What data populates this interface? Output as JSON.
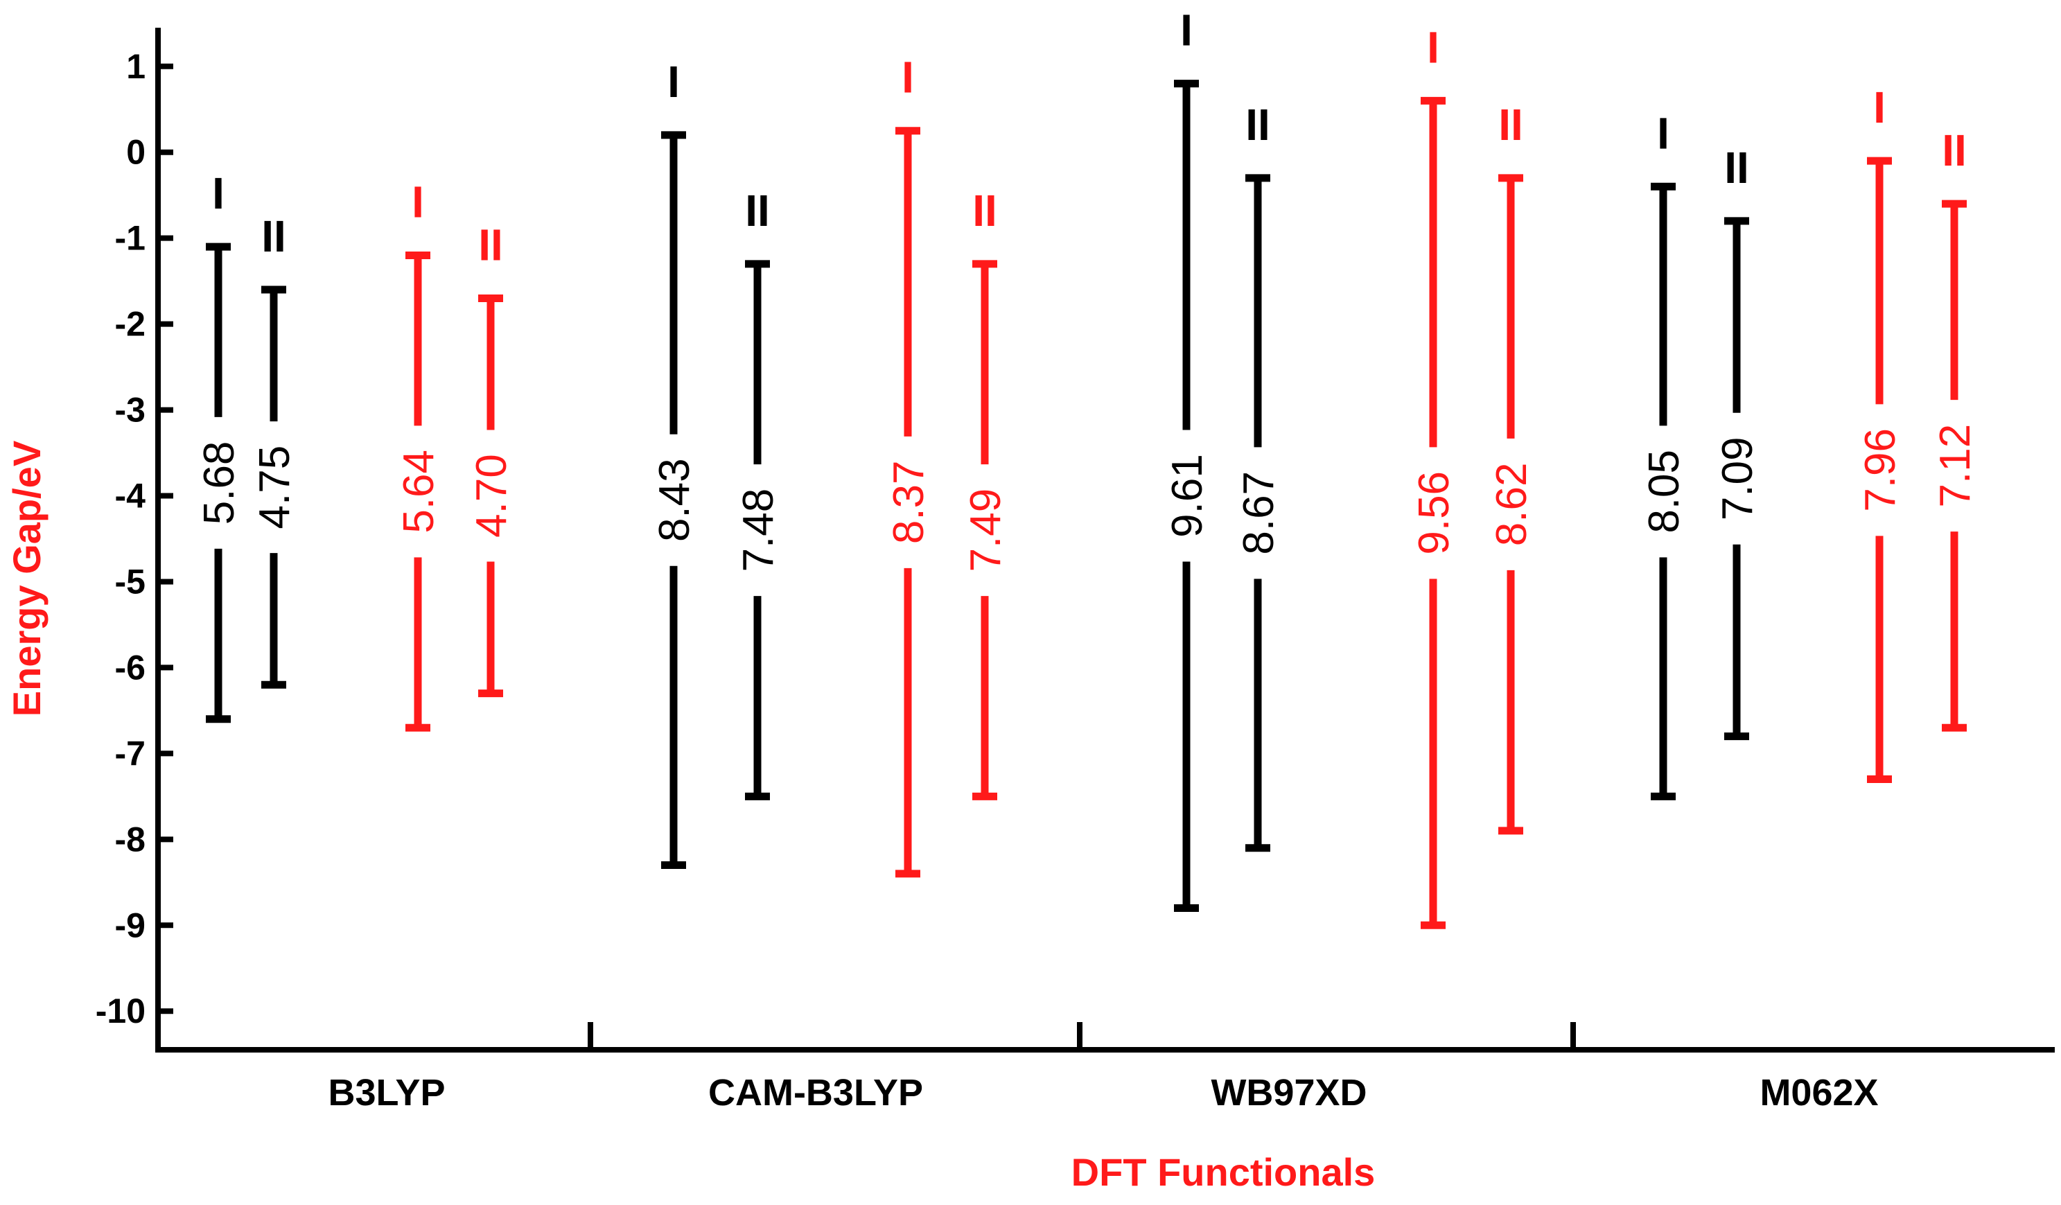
{
  "chart_data": {
    "type": "range-bar",
    "xlabel": "DFT Functionals",
    "ylabel": "Energy Gap/eV",
    "ylim": [
      -10.45,
      1.45
    ],
    "yticks": [
      1,
      0,
      -1,
      -2,
      -3,
      -4,
      -5,
      -6,
      -7,
      -8,
      -9,
      -10
    ],
    "categories": [
      "B3LYP",
      "CAM-B3LYP",
      "WB97XD",
      "M062X"
    ],
    "colors": {
      "black": "#000000",
      "red": "#ff1a1a",
      "axis_title": "#ff1a1a"
    },
    "groups": [
      {
        "category": "B3LYP",
        "bars": [
          {
            "mark": "I",
            "color": "black",
            "top": -1.1,
            "bottom": -6.6,
            "label": "5.68"
          },
          {
            "mark": "II",
            "color": "black",
            "top": -1.6,
            "bottom": -6.2,
            "label": "4.75"
          },
          {
            "mark": "I",
            "color": "red",
            "top": -1.2,
            "bottom": -6.7,
            "label": "5.64"
          },
          {
            "mark": "II",
            "color": "red",
            "top": -1.7,
            "bottom": -6.3,
            "label": "4.70"
          }
        ]
      },
      {
        "category": "CAM-B3LYP",
        "bars": [
          {
            "mark": "I",
            "color": "black",
            "top": 0.2,
            "bottom": -8.3,
            "label": "8.43"
          },
          {
            "mark": "II",
            "color": "black",
            "top": -1.3,
            "bottom": -7.5,
            "label": "7.48"
          },
          {
            "mark": "I",
            "color": "red",
            "top": 0.25,
            "bottom": -8.4,
            "label": "8.37"
          },
          {
            "mark": "II",
            "color": "red",
            "top": -1.3,
            "bottom": -7.5,
            "label": "7.49"
          }
        ]
      },
      {
        "category": "WB97XD",
        "bars": [
          {
            "mark": "I",
            "color": "black",
            "top": 0.8,
            "bottom": -8.8,
            "label": "9.61"
          },
          {
            "mark": "II",
            "color": "black",
            "top": -0.3,
            "bottom": -8.1,
            "label": "8.67"
          },
          {
            "mark": "I",
            "color": "red",
            "top": 0.6,
            "bottom": -9.0,
            "label": "9.56"
          },
          {
            "mark": "II",
            "color": "red",
            "top": -0.3,
            "bottom": -7.9,
            "label": "8.62"
          }
        ]
      },
      {
        "category": "M062X",
        "bars": [
          {
            "mark": "I",
            "color": "black",
            "top": -0.4,
            "bottom": -7.5,
            "label": "8.05"
          },
          {
            "mark": "II",
            "color": "black",
            "top": -0.8,
            "bottom": -6.8,
            "label": "7.09"
          },
          {
            "mark": "I",
            "color": "red",
            "top": -0.1,
            "bottom": -7.3,
            "label": "7.96"
          },
          {
            "mark": "II",
            "color": "red",
            "top": -0.6,
            "bottom": -6.7,
            "label": "7.12"
          }
        ]
      }
    ]
  }
}
